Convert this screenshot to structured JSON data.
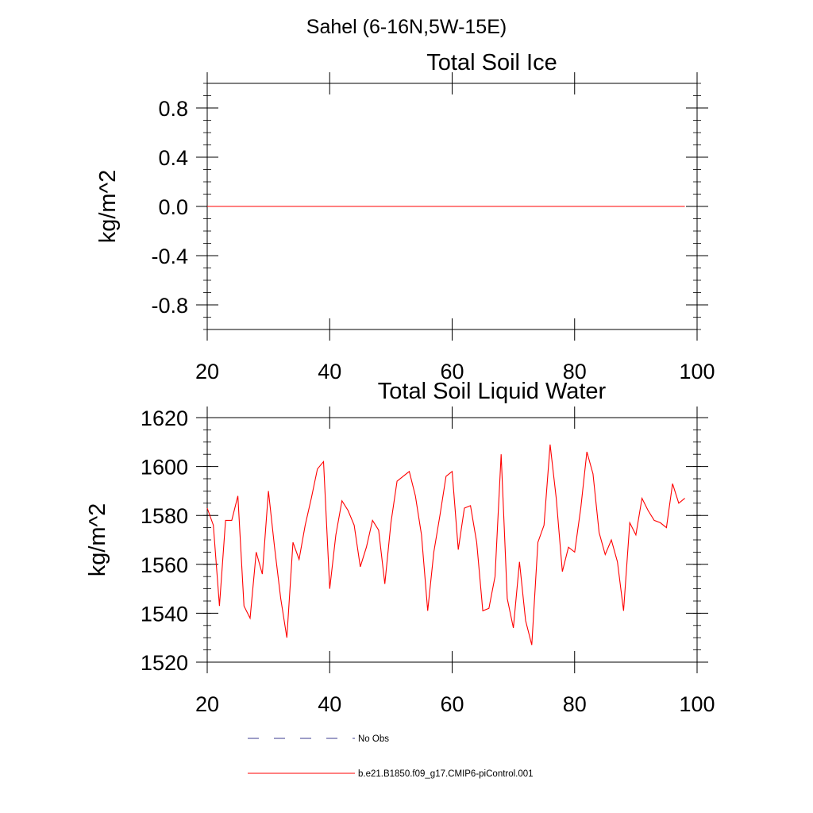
{
  "figure_title": "Sahel (6-16N,5W-15E)",
  "colors": {
    "model_line": "#ff0000",
    "obs_line": "#3b3b8f",
    "axis": "#000000"
  },
  "legend": [
    {
      "label": "No Obs",
      "style": "dashed",
      "color": "#3b3b8f"
    },
    {
      "label": "b.e21.B1850.f09_g17.CMIP6-piControl.001",
      "style": "solid",
      "color": "#ff0000"
    }
  ],
  "chart_data": [
    {
      "type": "line",
      "title": "Total Soil Ice",
      "xlabel": "",
      "ylabel": "kg/m^2",
      "xlim": [
        20,
        100
      ],
      "ylim": [
        -1,
        1
      ],
      "xticks": [
        20,
        40,
        60,
        80,
        100
      ],
      "xtick_labels": [
        "20",
        "40",
        "60",
        "80",
        "100"
      ],
      "yticks": [
        0.8,
        0.4,
        0.0,
        -0.4,
        -0.8
      ],
      "ytick_labels": [
        "0.8",
        "0.4",
        "0.0",
        "-0.4",
        "-0.8"
      ],
      "ymin_step": 0.1,
      "series": [
        {
          "name": "b.e21.B1850.f09_g17.CMIP6-piControl.001",
          "x": [
            20,
            98
          ],
          "values": [
            0,
            0
          ]
        }
      ]
    },
    {
      "type": "line",
      "title": "Total Soil Liquid Water",
      "xlabel": "",
      "ylabel": "kg/m^2",
      "xlim": [
        20,
        100
      ],
      "ylim": [
        1520,
        1620
      ],
      "xticks": [
        20,
        40,
        60,
        80,
        100
      ],
      "xtick_labels": [
        "20",
        "40",
        "60",
        "80",
        "100"
      ],
      "yticks": [
        1620,
        1600,
        1580,
        1560,
        1540,
        1520
      ],
      "ytick_labels": [
        "1620",
        "1600",
        "1580",
        "1560",
        "1540",
        "1520"
      ],
      "ymin_step": 5,
      "series": [
        {
          "name": "b.e21.B1850.f09_g17.CMIP6-piControl.001",
          "x_start": 20,
          "x_step": 1,
          "values": [
            1583,
            1576,
            1543,
            1578,
            1578,
            1588,
            1543,
            1538,
            1565,
            1556,
            1590,
            1567,
            1546,
            1530,
            1569,
            1562,
            1576,
            1587,
            1599,
            1602,
            1550,
            1572,
            1586,
            1582,
            1576,
            1559,
            1567,
            1578,
            1574,
            1552,
            1577,
            1594,
            1596,
            1598,
            1588,
            1572,
            1541,
            1565,
            1580,
            1596,
            1598,
            1566,
            1583,
            1584,
            1569,
            1541,
            1542,
            1555,
            1605,
            1546,
            1534,
            1561,
            1537,
            1527,
            1569,
            1576,
            1609,
            1587,
            1557,
            1567,
            1565,
            1583,
            1606,
            1597,
            1573,
            1564,
            1570,
            1561,
            1541,
            1577,
            1572,
            1587,
            1582,
            1578,
            1577,
            1575,
            1593,
            1585,
            1587
          ]
        }
      ]
    }
  ]
}
